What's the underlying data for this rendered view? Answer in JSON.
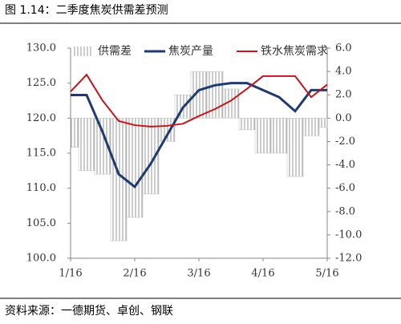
{
  "chart_data": {
    "type": "line",
    "title": "图 1.14：二季度焦炭供需差预测",
    "source": "资料来源：一德期货、卓创、钢联",
    "categories": [
      "1/16",
      null,
      null,
      null,
      "2/16",
      null,
      null,
      null,
      "3/16",
      null,
      null,
      null,
      "4/16",
      null,
      null,
      null,
      "5/16"
    ],
    "ylim": [
      100,
      130
    ],
    "yticks": [
      {
        "value": 100,
        "label": "100.0"
      },
      {
        "value": 105,
        "label": "105.0"
      },
      {
        "value": 110,
        "label": "110.0"
      },
      {
        "value": 115,
        "label": "115.0"
      },
      {
        "value": 120,
        "label": "120.0"
      },
      {
        "value": 125,
        "label": "125.0"
      },
      {
        "value": 130,
        "label": "130.0"
      }
    ],
    "y2lim": [
      -12,
      6
    ],
    "y2ticks": [
      {
        "value": -12,
        "label": "-12.0"
      },
      {
        "value": -10,
        "label": "-10.0"
      },
      {
        "value": -8,
        "label": "-8.0"
      },
      {
        "value": -6,
        "label": "-6.0"
      },
      {
        "value": -4,
        "label": "-4.0"
      },
      {
        "value": -2,
        "label": "-2.0"
      },
      {
        "value": 0,
        "label": "0.0"
      },
      {
        "value": 2,
        "label": "2.0"
      },
      {
        "value": 4,
        "label": "4.0"
      },
      {
        "value": 6,
        "label": "6.0"
      }
    ],
    "series": [
      {
        "name": "供需差",
        "color": "#999999",
        "axis": "y2",
        "style": "hatched-area",
        "values": [
          -2.5,
          -4.5,
          -4.8,
          -10.5,
          -8.5,
          -6.5,
          -2,
          2,
          4,
          4,
          2.5,
          -1,
          -3,
          -3,
          -5,
          -1.5,
          -0.8
        ]
      },
      {
        "name": "焦炭产量",
        "color": "#1f3a6e",
        "values": [
          123.3,
          123.3,
          118,
          112,
          110.2,
          113.5,
          117.5,
          121.5,
          124,
          124.7,
          125,
          125,
          124,
          123,
          121,
          124,
          124
        ]
      },
      {
        "name": "铁水焦炭需求",
        "color": "#c0161d",
        "values": [
          123.8,
          126.2,
          122.5,
          119.6,
          119,
          118.8,
          118.9,
          119.2,
          120.3,
          121.3,
          122.5,
          124.2,
          126,
          126,
          126,
          123,
          124.8
        ]
      }
    ]
  }
}
